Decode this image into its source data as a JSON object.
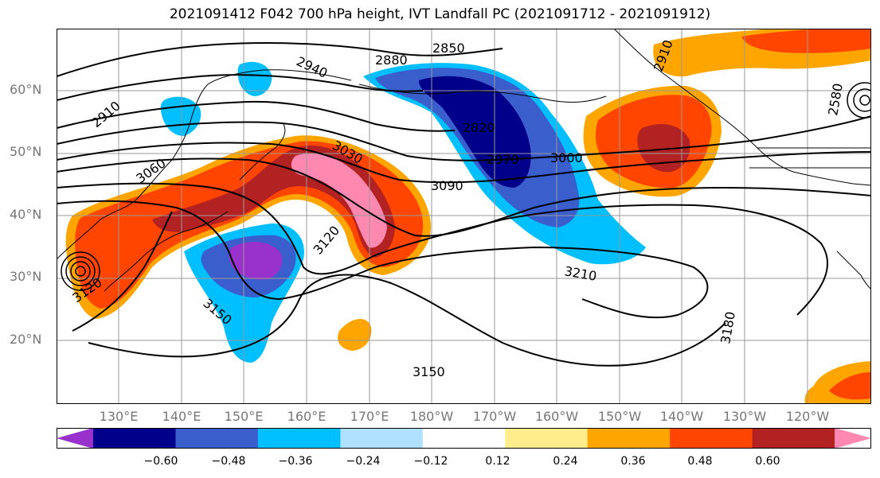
{
  "title": "2021091412 F042 700 hPa height, IVT Landfall PC (2021091712 - 2021091912)",
  "lat_labels": [
    "60°N",
    "50°N",
    "40°N",
    "30°N",
    "20°N"
  ],
  "lon_labels": [
    "130°E",
    "140°E",
    "150°E",
    "160°E",
    "170°E",
    "180°W",
    "170°W",
    "160°W",
    "150°W",
    "140°W",
    "130°W",
    "120°W"
  ],
  "contour_labels": [
    "2850",
    "2880",
    "2940",
    "2910",
    "2910",
    "2580",
    "2820",
    "2970",
    "3000",
    "3030",
    "3060",
    "3090",
    "3120",
    "3120",
    "3150",
    "3150",
    "3180",
    "3210"
  ],
  "colorbar": {
    "colors": [
      "#9932CC",
      "#00008B",
      "#3A5FCD",
      "#00BFFF",
      "#B0E0FF",
      "#FFFFFF",
      "#FFEC8B",
      "#FFA500",
      "#FF4500",
      "#B22222",
      "#FF88B0"
    ],
    "tick_labels": [
      "−0.60",
      "−0.48",
      "−0.36",
      "−0.24",
      "−0.12",
      "0.12",
      "0.24",
      "0.36",
      "0.48",
      "0.60"
    ]
  }
}
